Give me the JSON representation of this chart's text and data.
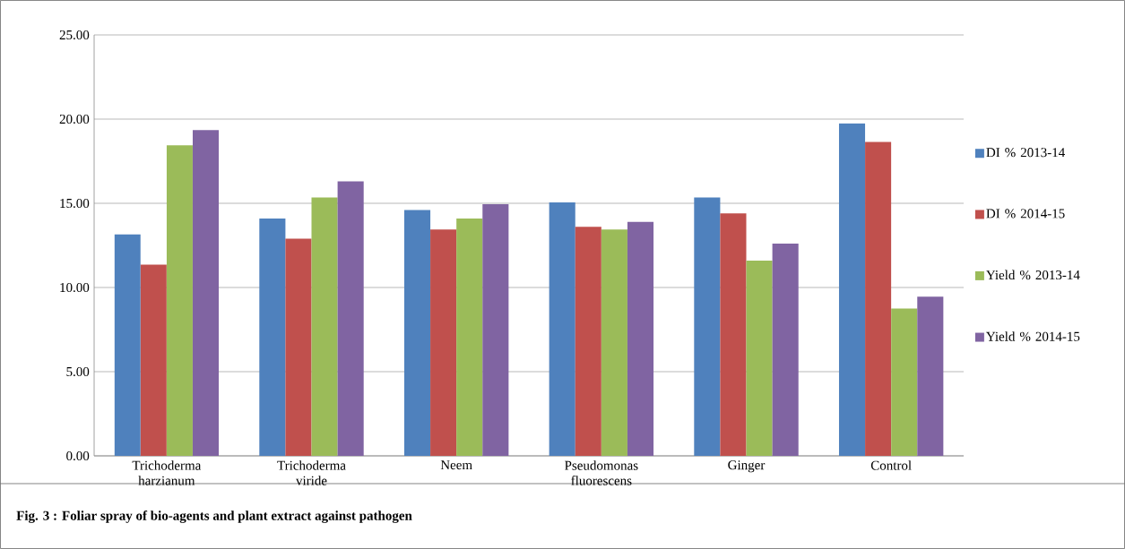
{
  "chart_data": {
    "type": "bar",
    "categories": [
      "Trichoderma harzianum",
      "Trichoderma viride",
      "Neem",
      "Pseudomonas fluorescens",
      "Ginger",
      "Control"
    ],
    "series": [
      {
        "name": "DI %  2013-14",
        "color": "#4f81bd",
        "values": [
          13.15,
          14.1,
          14.6,
          15.05,
          15.35,
          19.75
        ]
      },
      {
        "name": "DI %  2014-15",
        "color": "#c0504d",
        "values": [
          11.35,
          12.9,
          13.45,
          13.6,
          14.4,
          18.65
        ]
      },
      {
        "name": "Yield %  2013-14",
        "color": "#9bbb59",
        "values": [
          18.45,
          15.35,
          14.1,
          13.45,
          11.6,
          8.75
        ]
      },
      {
        "name": "Yield %  2014-15",
        "color": "#8064a2",
        "values": [
          19.35,
          16.3,
          14.95,
          13.9,
          12.6,
          9.45
        ]
      }
    ],
    "ylim": [
      0,
      25
    ],
    "yticks": [
      {
        "value": 0,
        "label": "0.00"
      },
      {
        "value": 5,
        "label": "5.00"
      },
      {
        "value": 10,
        "label": "10.00"
      },
      {
        "value": 15,
        "label": "15.00"
      },
      {
        "value": 20,
        "label": "20.00"
      },
      {
        "value": 25,
        "label": "25.00"
      }
    ],
    "grid": "y",
    "legend": "right",
    "annotations": [
      "**Fig. 3 :    Foliar spray of bio-agents and plant extract against pathogen**"
    ]
  }
}
